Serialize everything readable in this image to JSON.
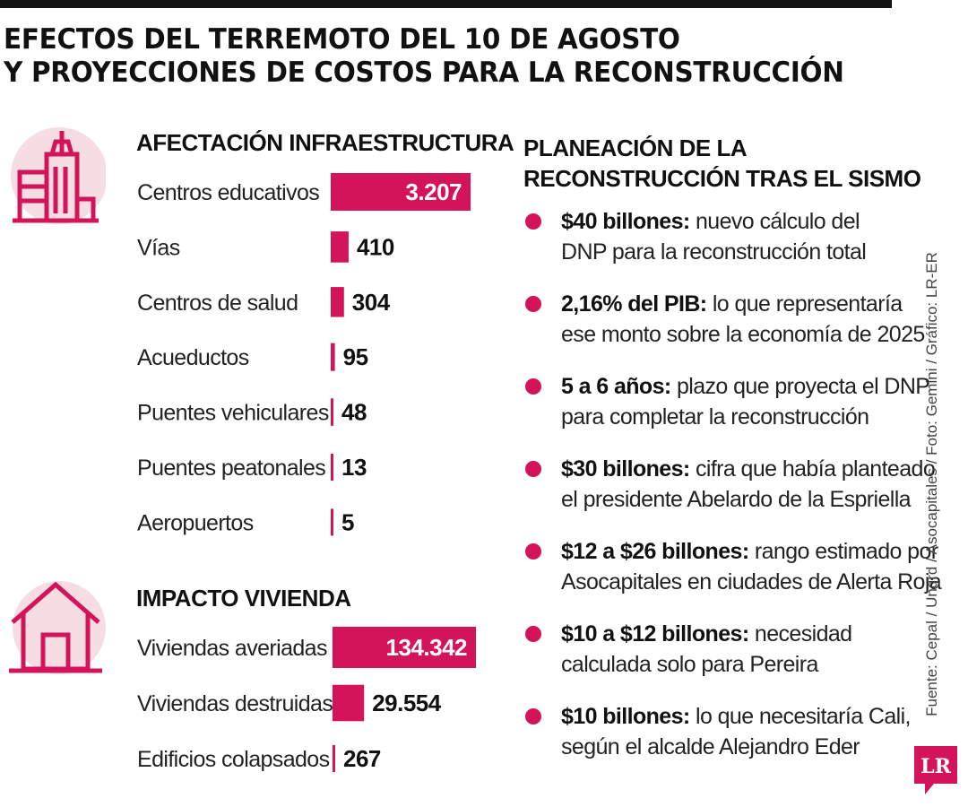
{
  "title": {
    "line1": "EFECTOS DEL TERREMOTO DEL 10 DE AGOSTO",
    "line2": "Y PROYECCIONES DE COSTOS PARA LA RECONSTRUCCIÓN"
  },
  "colors": {
    "accent": "#d4145a",
    "icon_bg": "#f5dde3",
    "text": "#1a1a1a"
  },
  "icons": {
    "infra": "buildings-icon",
    "housing": "house-icon",
    "bullet": "circle-bullet-icon"
  },
  "chart_data": [
    {
      "type": "bar",
      "orientation": "horizontal",
      "title": "AFECTACIÓN INFRAESTRUCTURA",
      "categories": [
        "Centros educativos",
        "Vías",
        "Centros de salud",
        "Acueductos",
        "Puentes vehiculares",
        "Puentes peatonales",
        "Aeropuertos"
      ],
      "values": [
        3207,
        410,
        304,
        95,
        48,
        13,
        5
      ],
      "value_labels": [
        "3.207",
        "410",
        "304",
        "95",
        "48",
        "13",
        "5"
      ],
      "label_inside_bar": [
        true,
        false,
        false,
        false,
        false,
        false,
        false
      ],
      "color": "#d4145a",
      "xlabel": "",
      "ylabel": "",
      "grid": false
    },
    {
      "type": "bar",
      "orientation": "horizontal",
      "title": "IMPACTO VIVIENDA",
      "categories": [
        "Viviendas averiadas",
        "Viviendas destruidas",
        "Edificios colapsados"
      ],
      "values": [
        134342,
        29554,
        267
      ],
      "value_labels": [
        "134.342",
        "29.554",
        "267"
      ],
      "label_inside_bar": [
        true,
        false,
        false
      ],
      "color": "#d4145a",
      "xlabel": "",
      "ylabel": "",
      "grid": false
    }
  ],
  "planning": {
    "heading_line1": "PLANEACIÓN DE LA",
    "heading_line2": "RECONSTRUCCIÓN TRAS EL SISMO",
    "items": [
      {
        "lead": "$40 billones:",
        "rest1": " nuevo cálculo del",
        "rest2": "DNP para la reconstrucción total"
      },
      {
        "lead": "2,16% del PIB:",
        "rest1": " lo que representaría",
        "rest2": "ese monto sobre la economía de 2025"
      },
      {
        "lead": "5 a 6 años:",
        "rest1": " plazo que proyecta el DNP",
        "rest2": "para completar la reconstrucción"
      },
      {
        "lead": "$30 billones:",
        "rest1": " cifra que había planteado",
        "rest2": "el presidente Abelardo de la Espriella"
      },
      {
        "lead": "$12 a $26 billones:",
        "rest1": " rango estimado por",
        "rest2": "Asocapitales en ciudades de Alerta Roja"
      },
      {
        "lead": "$10 a $12 billones:",
        "rest1": " necesidad",
        "rest2": "calculada solo para Pereira"
      },
      {
        "lead": "$10 billones:",
        "rest1": " lo que necesitaría Cali,",
        "rest2": "según el alcalde Alejandro Eder"
      }
    ]
  },
  "source": "Fuente: Cepal / Ungrd / Asocapitales / Foto: Gemini / Gráfico: LR-ER",
  "logo_text": "LR"
}
